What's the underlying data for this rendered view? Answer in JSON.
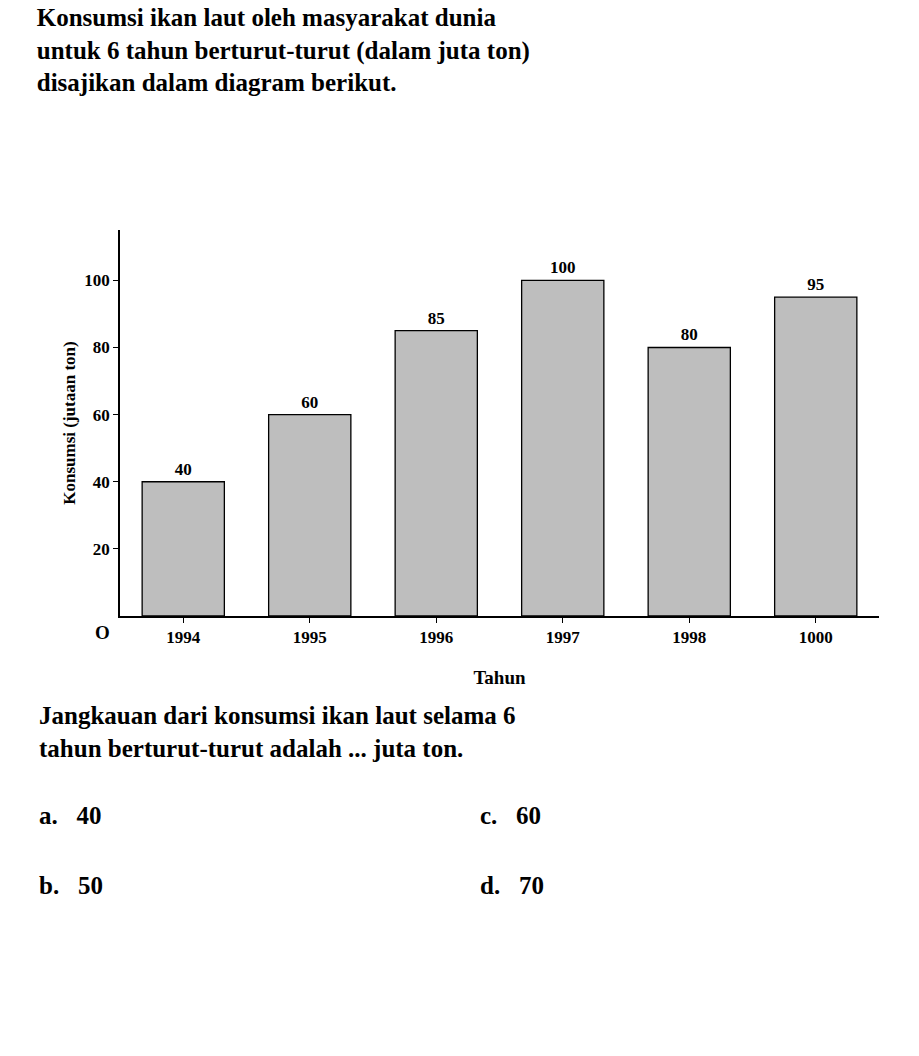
{
  "chart_data": {
    "type": "bar",
    "title": [
      "Konsumsi ikan laut oleh masyarakat dunia",
      "untuk 6 tahun berturut-turut (dalam juta ton)",
      "disajikan dalam diagram berikut."
    ],
    "subtitle": [
      "Jangkauan dari konsumsi ikan laut selama 6",
      "tahun berturut-turut adalah ... juta ton."
    ],
    "xlabel": "Tahun",
    "ylabel": "Konsumsi (jutaan ton)",
    "categories": [
      "1994",
      "1995",
      "1996",
      "1997",
      "1998",
      "1000"
    ],
    "values": [
      40,
      60,
      85,
      100,
      80,
      95
    ],
    "color": "#bebebe",
    "ylim": [
      0,
      115
    ],
    "yticks": [
      20,
      40,
      60,
      80,
      100
    ],
    "grid": false,
    "data_labels": true,
    "annotations": [
      "O",
      "a.   40",
      "b.   50",
      "c.   60",
      "d.   70"
    ]
  }
}
